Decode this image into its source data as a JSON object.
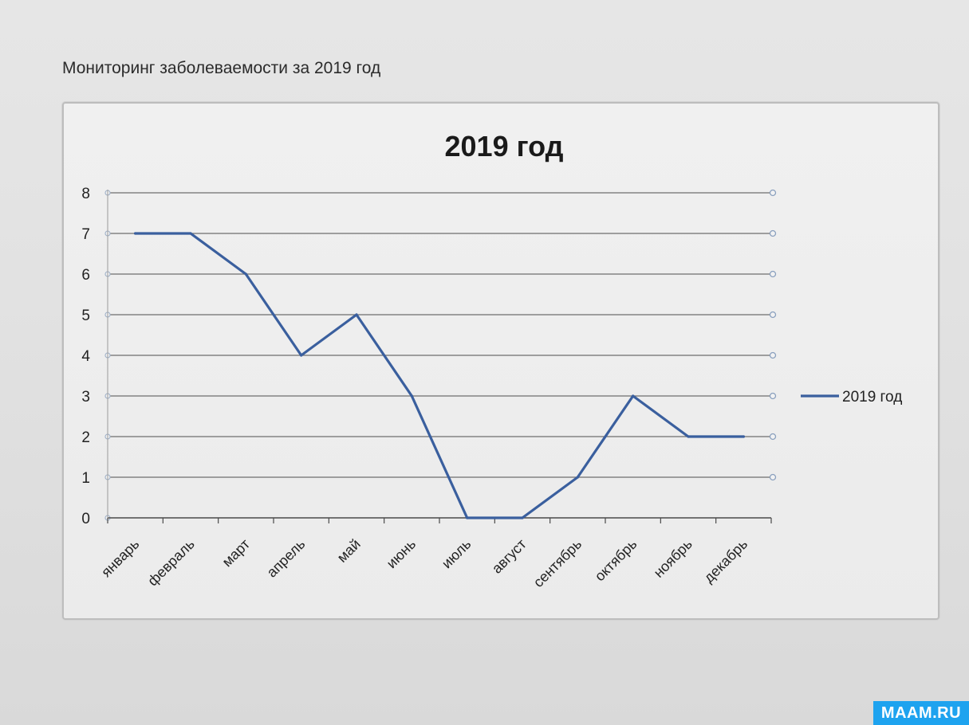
{
  "page": {
    "heading": "Мониторинг  заболеваемости  за 2019 год",
    "watermark": "MAAM.RU"
  },
  "chart_data": {
    "type": "line",
    "title": "2019 год",
    "xlabel": "",
    "ylabel": "",
    "categories": [
      "январь",
      "февраль",
      "март",
      "апрель",
      "май",
      "июнь",
      "июль",
      "август",
      "сентябрь",
      "октябрь",
      "ноябрь",
      "декабрь"
    ],
    "series": [
      {
        "name": "2019 год",
        "values": [
          7,
          7,
          6,
          4,
          5,
          3,
          0,
          0,
          1,
          3,
          2,
          2
        ],
        "color": "#3a5f9e"
      }
    ],
    "ylim": [
      0,
      8
    ],
    "yticks": [
      "0",
      "1",
      "2",
      "3",
      "4",
      "5",
      "6",
      "7",
      "8"
    ],
    "grid": true,
    "legend_position": "right"
  }
}
